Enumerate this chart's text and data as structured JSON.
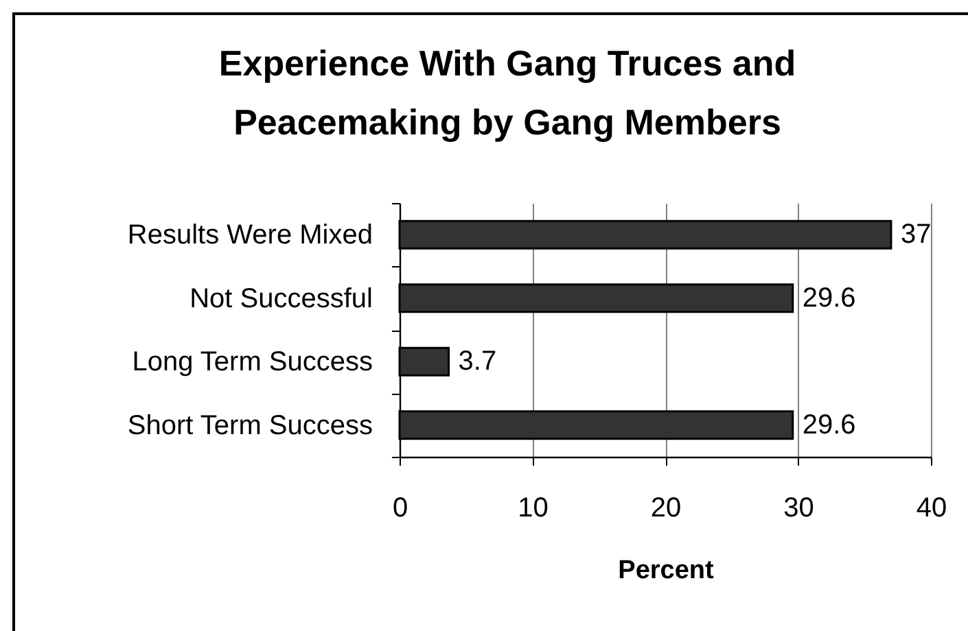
{
  "chart_data": {
    "type": "bar",
    "orientation": "horizontal",
    "title": "Experience With Gang Truces and\nPeacemaking by Gang Members",
    "categories": [
      "Results Were Mixed",
      "Not Successful",
      "Long Term Success",
      "Short Term Success"
    ],
    "values": [
      37,
      29.6,
      3.7,
      29.6
    ],
    "color": "#333333",
    "xlabel": "Percent",
    "xlim": [
      0,
      40
    ],
    "xticks": [
      0,
      10,
      20,
      30,
      40
    ],
    "grid": "x",
    "data_labels": true
  }
}
